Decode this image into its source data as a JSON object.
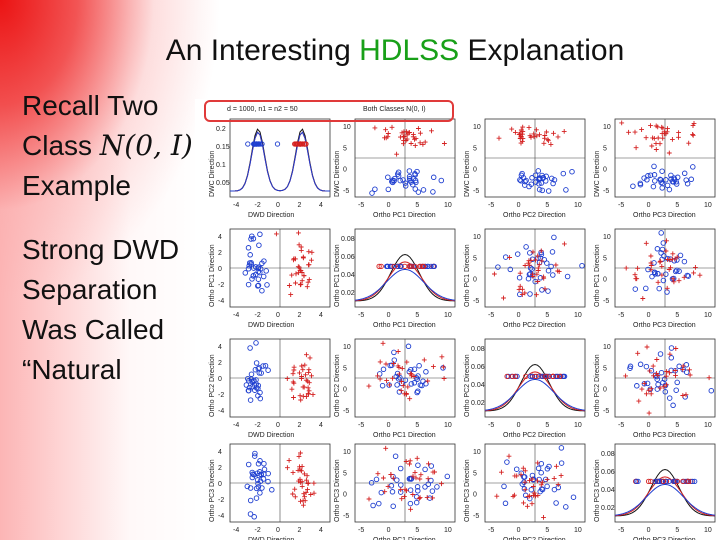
{
  "slide": {
    "title_pre": "An Interesting ",
    "title_highlight": "HDLSS",
    "title_post": " Explanation",
    "colors": {
      "highlight": "#18a018",
      "callout": "#e03a3a",
      "class1": "#1f3fd0",
      "class2": "#d42020"
    }
  },
  "bullets": [
    {
      "line1": "Recall Two",
      "line2_pre": "Class ",
      "math": "N(0, I)",
      "line3": "Example"
    },
    {
      "lines": [
        "Strong DWD",
        "Separation",
        "Was Called",
        "“Natural"
      ]
    }
  ],
  "figure": {
    "header_left": "d = 1000, n1 = n2 = 50",
    "header_right": "Both Classes N(0, I)",
    "row_labels": [
      "DWC Direction",
      "Ortho PC1 Direction",
      "Ortho PC2 Direction",
      "Ortho PC3 Direction"
    ],
    "col_labels": [
      "DWD Direction",
      "Ortho PC1 Direction",
      "Ortho PC2 Direction",
      "Ortho PC3 Direction"
    ],
    "diag_ticks": [
      [
        "0.2",
        "0.15",
        "0.1",
        "0.05"
      ],
      [
        "0.08",
        "0.06",
        "0.04",
        "0.02"
      ],
      [
        "0.08",
        "0.06",
        "0.04",
        "0.02"
      ],
      [
        "0.08",
        "0.06",
        "0.04",
        "0.02"
      ]
    ],
    "x_ticks_dwd": [
      "-4",
      "-2",
      "0",
      "2",
      "4"
    ],
    "x_ticks_pc": [
      "-5",
      "0",
      "5",
      "10"
    ],
    "y_ticks_dwd": [
      "4",
      "2",
      "0",
      "-2",
      "-4"
    ],
    "y_ticks_pc": [
      "10",
      "5",
      "0",
      "-5"
    ]
  }
}
